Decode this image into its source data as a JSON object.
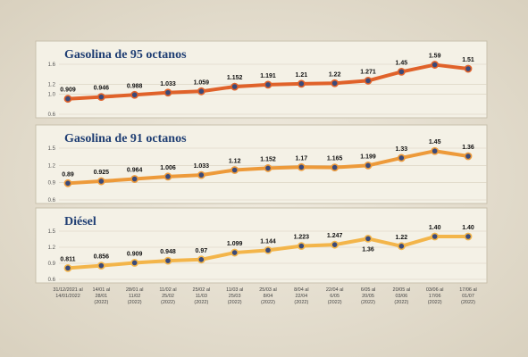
{
  "chart_data": [
    {
      "type": "line",
      "title": "Gasolina de 95 octanos",
      "ylim": [
        0.6,
        1.6
      ],
      "yticks": [
        "0.6",
        "1.0",
        "1.2",
        "1.6"
      ],
      "color": "#e0622a",
      "values": [
        0.909,
        0.946,
        0.988,
        1.033,
        1.059,
        1.152,
        1.191,
        1.21,
        1.22,
        1.271,
        1.45,
        1.59,
        1.51
      ],
      "labels": [
        "0.909",
        "0.946",
        "0.988",
        "1.033",
        "1.059",
        "1.152",
        "1.191",
        "1.21",
        "1.22",
        "1.271",
        "1.45",
        "1.59",
        "1.51"
      ]
    },
    {
      "type": "line",
      "title": "Gasolina de 91 octanos",
      "ylim": [
        0.6,
        1.5
      ],
      "yticks": [
        "0.6",
        "0.9",
        "1.2",
        "1.5"
      ],
      "color": "#ed9a3a",
      "values": [
        0.89,
        0.925,
        0.964,
        1.006,
        1.033,
        1.12,
        1.152,
        1.17,
        1.165,
        1.199,
        1.33,
        1.45,
        1.36
      ],
      "labels": [
        "0.89",
        "0.925",
        "0.964",
        "1.006",
        "1.033",
        "1.12",
        "1.152",
        "1.17",
        "1.165",
        "1.199",
        "1.33",
        "1.45",
        "1.36"
      ]
    },
    {
      "type": "line",
      "title": "Diésel",
      "ylim": [
        0.6,
        1.5
      ],
      "yticks": [
        "0.6",
        "0.9",
        "1.2",
        "1.5"
      ],
      "color": "#f3b54a",
      "values": [
        0.811,
        0.856,
        0.909,
        0.948,
        0.97,
        1.099,
        1.144,
        1.223,
        1.247,
        1.36,
        1.22,
        1.4,
        1.4
      ],
      "labels": [
        "0.811",
        "0.856",
        "0.909",
        "0.948",
        "0.97",
        "1.099",
        "1.144",
        "1.223",
        "1.247",
        "1.36",
        "1.22",
        "1.40",
        "1.40"
      ],
      "label_below": [
        9
      ]
    }
  ],
  "categories": [
    [
      "31/12/2021 al",
      "14/01/2022"
    ],
    [
      "14/01 al",
      "28/01",
      "(2022)"
    ],
    [
      "28/01 al",
      "11/02",
      "(2022)"
    ],
    [
      "11/02 al",
      "25/02",
      "(2022)"
    ],
    [
      "25/02 al",
      "11/03",
      "(2022)"
    ],
    [
      "11/03 al",
      "25/03",
      "(2022)"
    ],
    [
      "25/03 al",
      "8/04",
      "(2022)"
    ],
    [
      "8/04 al",
      "22/04",
      "(2022)"
    ],
    [
      "22/04 al",
      "6/05",
      "(2022)"
    ],
    [
      "6/05 al",
      "20/05",
      "(2022)"
    ],
    [
      "20/05 al",
      "03/06",
      "(2022)"
    ],
    [
      "03/06 al",
      "17/06",
      "(2022)"
    ],
    [
      "17/06 al",
      "01/07",
      "(2022)"
    ]
  ],
  "colors": {
    "panel_fill": "#f4f1e6",
    "panel_stroke": "#c9c1ad",
    "marker_fill": "#3a4a7a",
    "title": "#1f3e73"
  }
}
